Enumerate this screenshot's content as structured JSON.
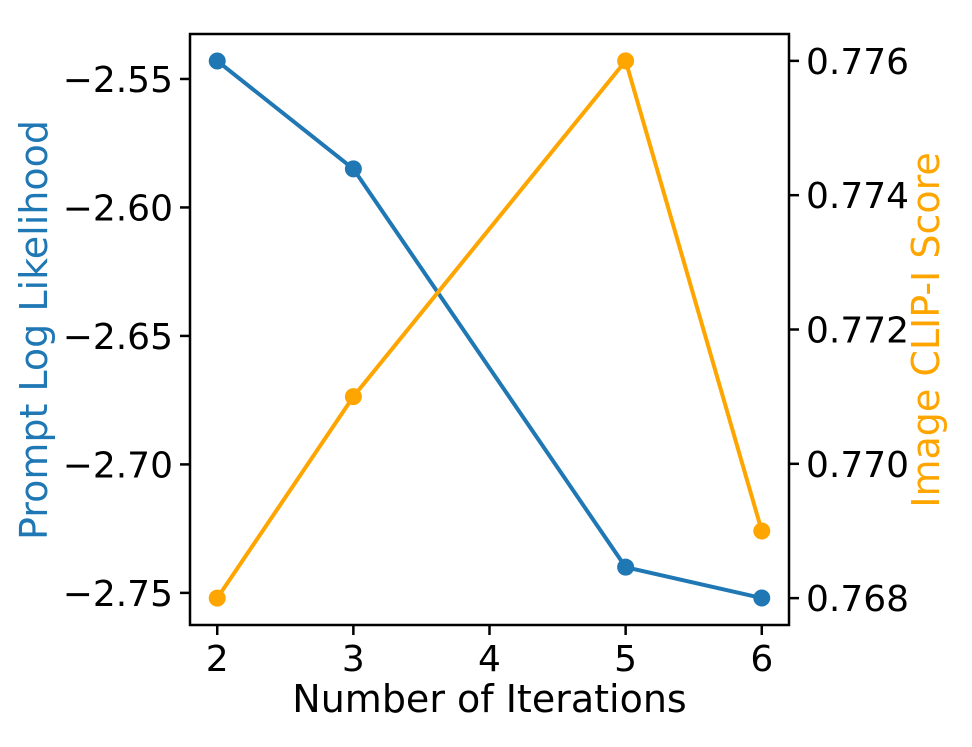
{
  "chart_data": {
    "type": "line",
    "title": "",
    "xlabel": "Number of Iterations",
    "ylabel_left": "Prompt Log Likelihood",
    "ylabel_right": "Image CLIP-I Score",
    "x": [
      2,
      3,
      5,
      6
    ],
    "series": [
      {
        "name": "Prompt Log Likelihood",
        "axis": "left",
        "color": "#1f77b4",
        "marker": "circle",
        "values": [
          -2.543,
          -2.585,
          -2.74,
          -2.752
        ]
      },
      {
        "name": "Image CLIP-I Score",
        "axis": "right",
        "color": "#ffa500",
        "marker": "circle",
        "values": [
          0.768,
          0.771,
          0.776,
          0.769
        ]
      }
    ],
    "xlim": [
      1.8,
      6.2
    ],
    "xticks": {
      "values": [
        2,
        3,
        4,
        5,
        6
      ],
      "labels": [
        "2",
        "3",
        "4",
        "5",
        "6"
      ]
    },
    "left_axis": {
      "ylim": [
        -2.7625,
        -2.5325
      ],
      "tick_values": [
        -2.55,
        -2.6,
        -2.65,
        -2.7,
        -2.75
      ],
      "tick_labels": [
        "−2.55",
        "−2.60",
        "−2.65",
        "−2.70",
        "−2.75"
      ],
      "label_color": "#1f77b4"
    },
    "right_axis": {
      "ylim": [
        0.7676,
        0.7764
      ],
      "tick_values": [
        0.776,
        0.774,
        0.772,
        0.77,
        0.768
      ],
      "tick_labels": [
        "0.776",
        "0.774",
        "0.772",
        "0.770",
        "0.768"
      ],
      "label_color": "#ffa500"
    },
    "grid": false,
    "legend": "none",
    "frame_color": "#000000",
    "tick_color": "#000000"
  }
}
